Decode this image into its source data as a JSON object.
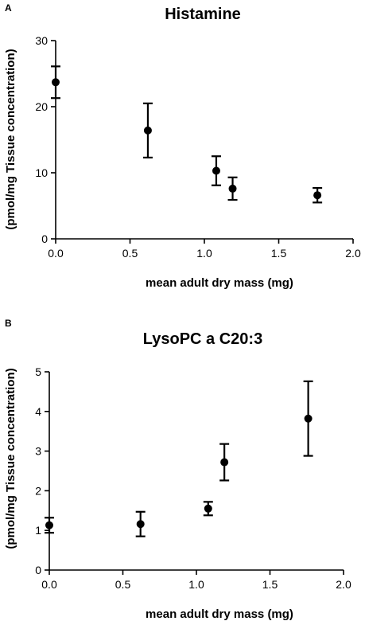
{
  "chart_data": [
    {
      "panel": "A",
      "type": "scatter",
      "title": "Histamine",
      "xlabel": "mean adult dry mass (mg)",
      "ylabel": "(pmol/mg Tissue concentration)",
      "xlim": [
        0,
        2.0
      ],
      "ylim": [
        0,
        30
      ],
      "xticks": [
        "0.0",
        "0.5",
        "1.0",
        "1.5",
        "2.0"
      ],
      "yticks": [
        "0",
        "10",
        "20",
        "30"
      ],
      "grid": false,
      "legend": "none",
      "points": [
        {
          "x": 0.0,
          "y": 23.7,
          "err": 2.4
        },
        {
          "x": 0.62,
          "y": 16.4,
          "err": 4.1
        },
        {
          "x": 1.08,
          "y": 10.3,
          "err": 2.2
        },
        {
          "x": 1.19,
          "y": 7.6,
          "err": 1.7
        },
        {
          "x": 1.76,
          "y": 6.6,
          "err": 1.1
        }
      ]
    },
    {
      "panel": "B",
      "type": "scatter",
      "title": "LysoPC a C20:3",
      "xlabel": "mean adult dry mass (mg)",
      "ylabel": "(pmol/mg Tissue concentration)",
      "xlim": [
        0,
        2.0
      ],
      "ylim": [
        0,
        5
      ],
      "xticks": [
        "0.0",
        "0.5",
        "1.0",
        "1.5",
        "2.0"
      ],
      "yticks": [
        "0",
        "1",
        "2",
        "3",
        "4",
        "5"
      ],
      "grid": false,
      "legend": "none",
      "points": [
        {
          "x": 0.0,
          "y": 1.13,
          "err": 0.19
        },
        {
          "x": 0.62,
          "y": 1.16,
          "err": 0.31
        },
        {
          "x": 1.08,
          "y": 1.55,
          "err": 0.17
        },
        {
          "x": 1.19,
          "y": 2.72,
          "err": 0.46
        },
        {
          "x": 1.76,
          "y": 3.82,
          "err": 0.94
        }
      ]
    }
  ]
}
